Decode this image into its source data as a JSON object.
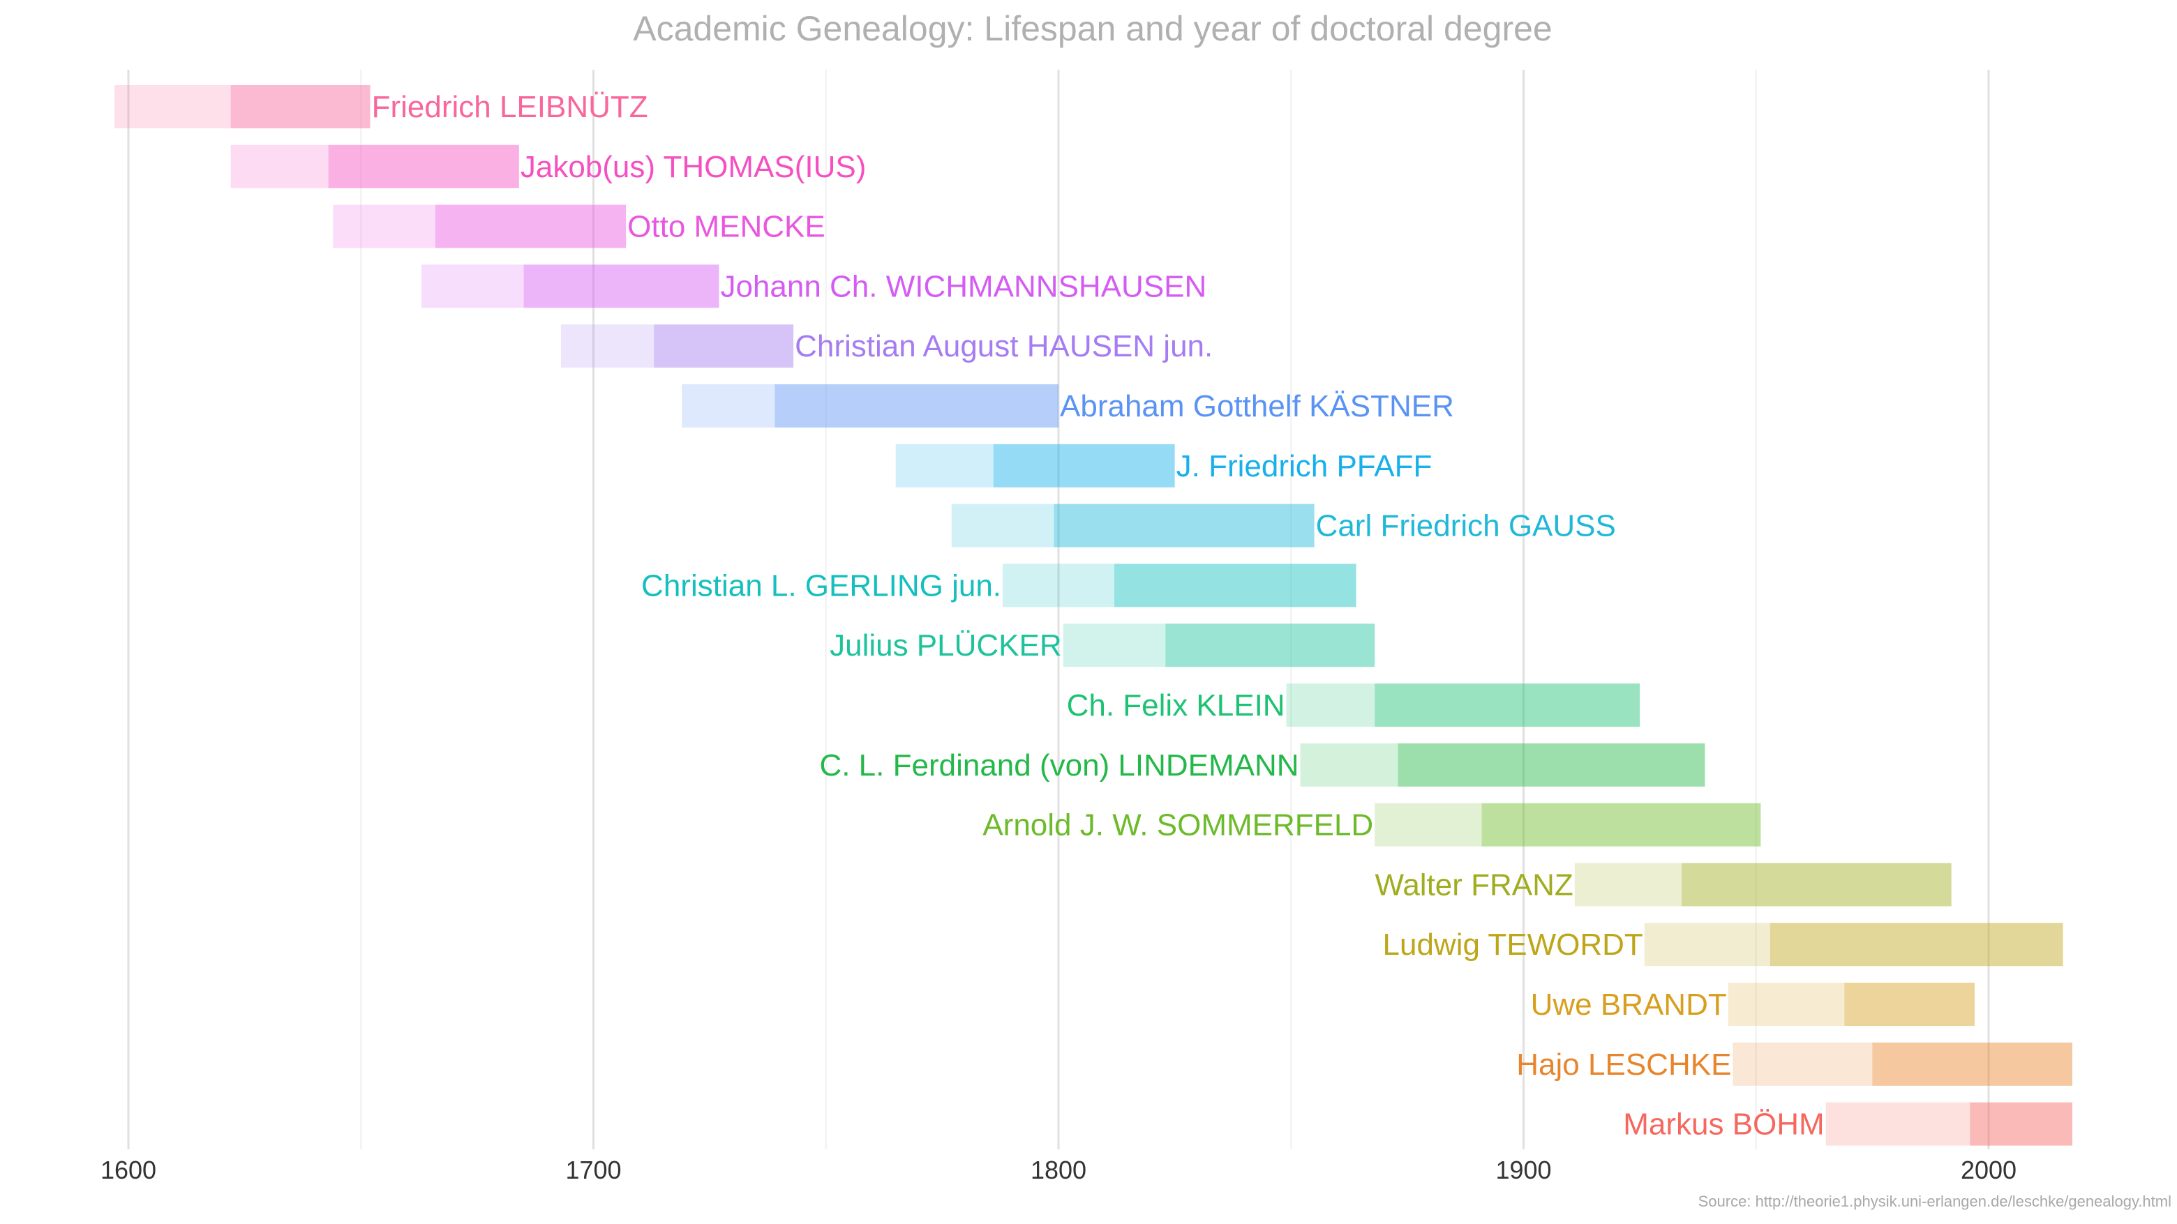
{
  "chart_data": {
    "type": "bar",
    "title": "Academic Genealogy: Lifespan and year of doctoral degree",
    "source": "Source: http://theorie1.physik.uni-erlangen.de/leschke/genealogy.html",
    "xlim": [
      1597,
      2034
    ],
    "x_ticks": [
      1600,
      1700,
      1800,
      1900,
      2000
    ],
    "minor_gridlines": [
      1650,
      1750,
      1850,
      1950
    ],
    "grid": true,
    "series": [
      {
        "name": "Friedrich LEIBNÜTZ",
        "birth": 1597,
        "degree": 1622,
        "end": 1652,
        "color": "#f8669b",
        "label_side": "right"
      },
      {
        "name": "Jakob(us) THOMAS(IUS)",
        "birth": 1622,
        "degree": 1643,
        "end": 1684,
        "color": "#f550c1",
        "label_side": "right"
      },
      {
        "name": "Otto MENCKE",
        "birth": 1644,
        "degree": 1666,
        "end": 1707,
        "color": "#e956df",
        "label_side": "right"
      },
      {
        "name": "Johann Ch. WICHMANNSHAUSEN",
        "birth": 1663,
        "degree": 1685,
        "end": 1727,
        "color": "#d55cf3",
        "label_side": "right"
      },
      {
        "name": "Christian August HAUSEN jun.",
        "birth": 1693,
        "degree": 1713,
        "end": 1743,
        "color": "#a57cf2",
        "label_side": "right"
      },
      {
        "name": "Abraham Gotthelf KÄSTNER",
        "birth": 1719,
        "degree": 1739,
        "end": 1800,
        "color": "#5a93f3",
        "label_side": "right"
      },
      {
        "name": "J. Friedrich PFAFF",
        "birth": 1765,
        "degree": 1786,
        "end": 1825,
        "color": "#17b0ea",
        "label_side": "right"
      },
      {
        "name": "Carl Friedrich GAUSS",
        "birth": 1777,
        "degree": 1799,
        "end": 1855,
        "color": "#1fb8d9",
        "label_side": "right"
      },
      {
        "name": "Christian L. GERLING jun.",
        "birth": 1788,
        "degree": 1812,
        "end": 1864,
        "color": "#14bfbe",
        "label_side": "left"
      },
      {
        "name": "Julius PLÜCKER",
        "birth": 1801,
        "degree": 1823,
        "end": 1868,
        "color": "#1dc39b",
        "label_side": "left"
      },
      {
        "name": "Ch. Felix KLEIN",
        "birth": 1849,
        "degree": 1868,
        "end": 1925,
        "color": "#1ec274",
        "label_side": "left"
      },
      {
        "name": "C. L. Ferdinand (von) LINDEMANN",
        "birth": 1852,
        "degree": 1873,
        "end": 1939,
        "color": "#23b849",
        "label_side": "left"
      },
      {
        "name": "Arnold J. W. SOMMERFELD",
        "birth": 1868,
        "degree": 1891,
        "end": 1951,
        "color": "#6dba2a",
        "label_side": "left"
      },
      {
        "name": "Walter FRANZ",
        "birth": 1911,
        "degree": 1934,
        "end": 1992,
        "color": "#9fad1e",
        "label_side": "left"
      },
      {
        "name": "Ludwig TEWORDT",
        "birth": 1926,
        "degree": 1953,
        "end": 2016,
        "color": "#bea61b",
        "label_side": "left"
      },
      {
        "name": "Uwe BRANDT",
        "birth": 1944,
        "degree": 1969,
        "end": 1997,
        "color": "#d89f1e",
        "label_side": "left"
      },
      {
        "name": "Hajo LESCHKE",
        "birth": 1945,
        "degree": 1975,
        "end": 2018,
        "color": "#e8852c",
        "label_side": "left"
      },
      {
        "name": "Markus BÖHM",
        "birth": 1965,
        "degree": 1996,
        "end": 2018,
        "color": "#f5675f",
        "label_side": "left"
      }
    ]
  }
}
